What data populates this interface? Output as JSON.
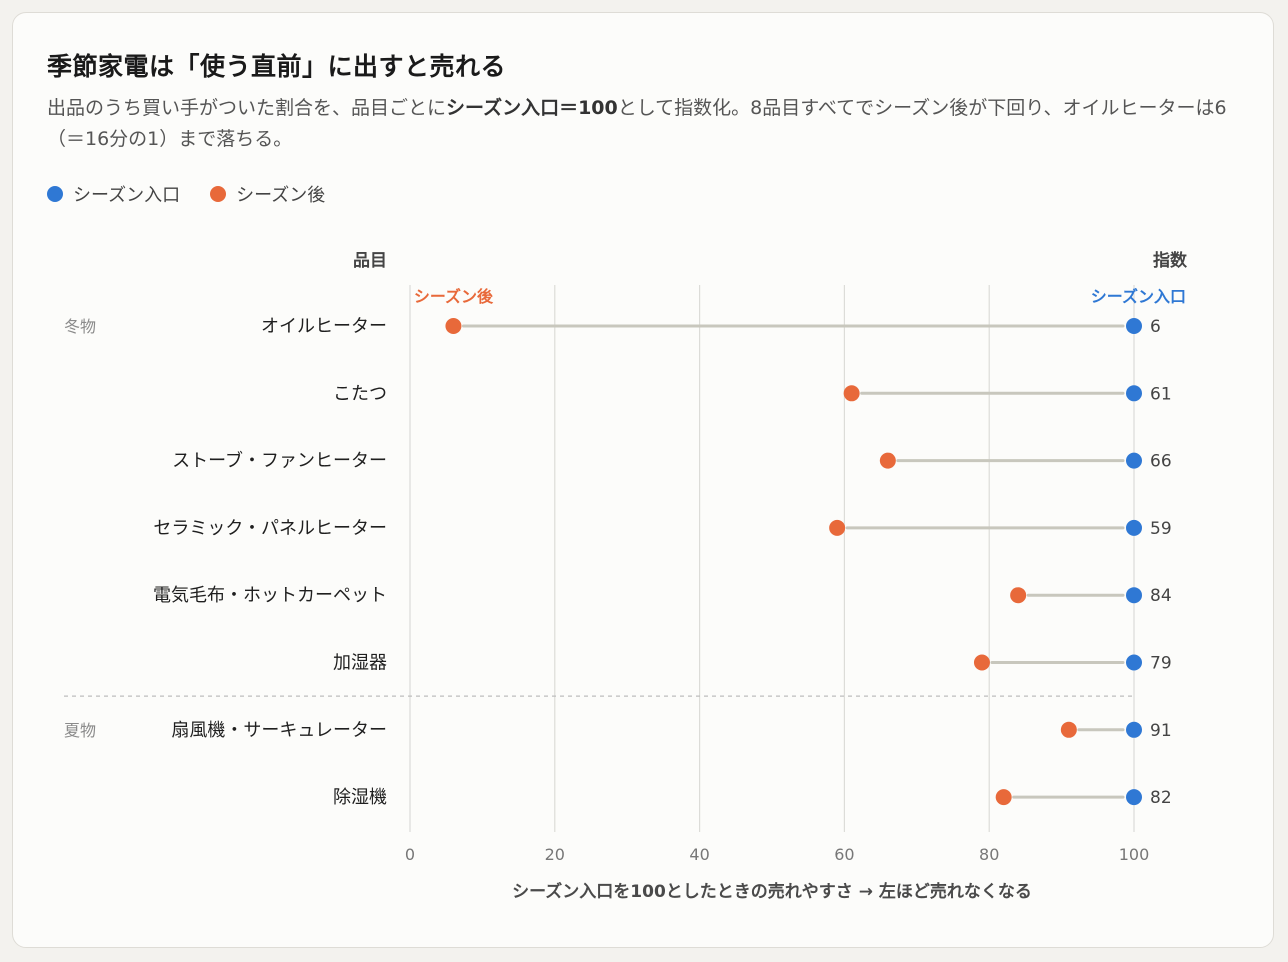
{
  "title": "季節家電は「使う直前」に出すと売れる",
  "subtitle": {
    "part1": "出品のうち買い手がついた割合を、品目ごとに",
    "bold": "シーズン入口＝100",
    "part2": "として指数化。8品目すべてでシーズン後が下回り、オイルヒーターは6（＝16分の1）まで落ちる。"
  },
  "legend": [
    {
      "label": "シーズン入口",
      "color": "#2f78d4"
    },
    {
      "label": "シーズン後",
      "color": "#e8693a"
    }
  ],
  "chart_data": {
    "type": "dumbbell",
    "column_header_item": "品目",
    "column_header_value": "指数",
    "series": [
      {
        "name": "シーズン入口",
        "color": "#2f78d4",
        "values": [
          100,
          100,
          100,
          100,
          100,
          100,
          100,
          100
        ]
      },
      {
        "name": "シーズン後",
        "color": "#e8693a",
        "values": [
          6,
          61,
          66,
          59,
          84,
          79,
          91,
          82
        ]
      }
    ],
    "categories": [
      "オイルヒーター",
      "こたつ",
      "ストーブ・ファンヒーター",
      "セラミック・パネルヒーター",
      "電気毛布・ホットカーペット",
      "加湿器",
      "扇風機・サーキュレーター",
      "除湿機"
    ],
    "groups": [
      {
        "label": "冬物",
        "start": 0,
        "end": 5
      },
      {
        "label": "夏物",
        "start": 6,
        "end": 7
      }
    ],
    "annotations": {
      "after_label": "シーズン後",
      "entry_label": "シーズン入口"
    },
    "xlim": [
      0,
      100
    ],
    "xticks": [
      0,
      20,
      40,
      60,
      80,
      100
    ],
    "xlabel": "シーズン入口を100としたときの売れやすさ → 左ほど売れなくなる",
    "grid": true,
    "connector_color": "#c8c7bd"
  }
}
